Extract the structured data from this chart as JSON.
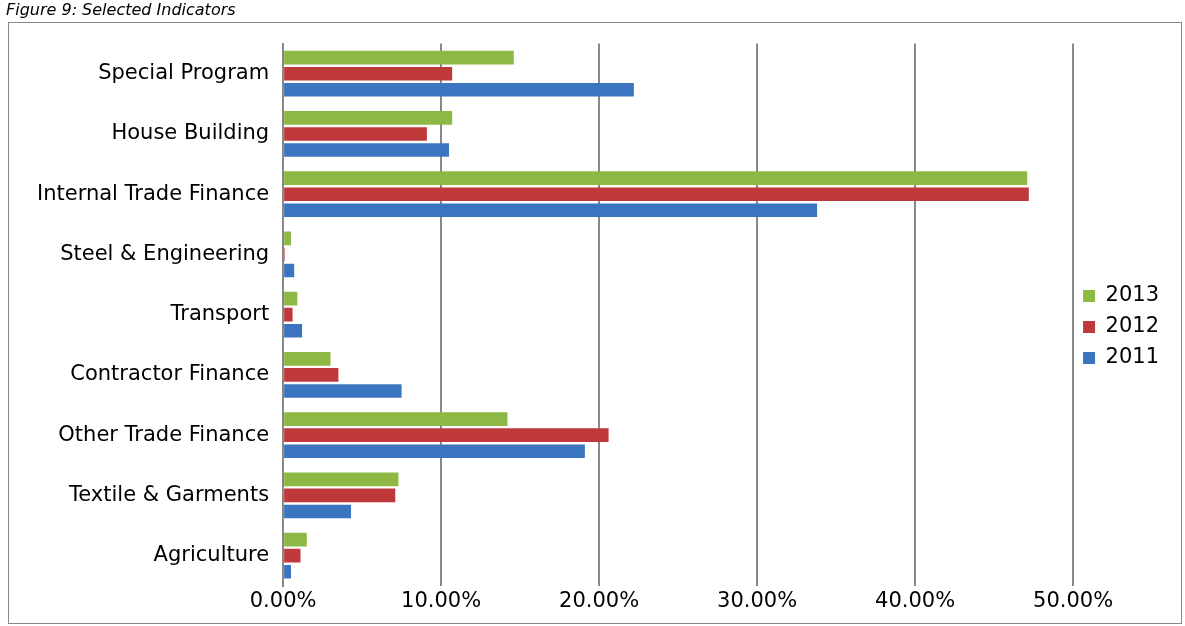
{
  "chart_data": {
    "type": "bar",
    "orientation": "horizontal",
    "title": "Figure 9: Selected Indicators",
    "categories": [
      "Special Program",
      "House Building",
      "Internal Trade Finance",
      "Steel & Engineering",
      "Transport",
      "Contractor Finance",
      "Other Trade Finance",
      "Textile & Garments",
      "Agriculture"
    ],
    "series": [
      {
        "name": "2013",
        "color": "#8db843",
        "values": [
          14.6,
          10.7,
          47.1,
          0.5,
          0.9,
          3.0,
          14.2,
          7.3,
          1.5
        ]
      },
      {
        "name": "2012",
        "color": "#c0393a",
        "values": [
          10.7,
          9.1,
          47.2,
          0.1,
          0.6,
          3.5,
          20.6,
          7.1,
          1.1
        ]
      },
      {
        "name": "2011",
        "color": "#3b75c0",
        "values": [
          22.2,
          10.5,
          33.8,
          0.7,
          1.2,
          7.5,
          19.1,
          4.3,
          0.5
        ]
      }
    ],
    "xlim": [
      0,
      50
    ],
    "xticks": [
      {
        "value": 0,
        "label": "0.00%"
      },
      {
        "value": 10,
        "label": "10.00%"
      },
      {
        "value": 20,
        "label": "20.00%"
      },
      {
        "value": 30,
        "label": "30.00%"
      },
      {
        "value": 40,
        "label": "40.00%"
      },
      {
        "value": 50,
        "label": "50.00%"
      }
    ],
    "grid": "x",
    "legend": "right"
  }
}
